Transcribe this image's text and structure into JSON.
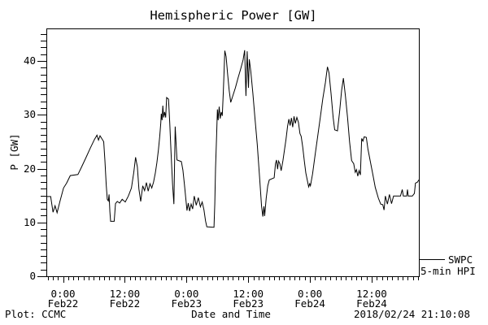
{
  "chart_data": {
    "type": "line",
    "title": "Hemispheric Power [GW]",
    "xlabel": "Date and Time",
    "ylabel": "P [GW]",
    "ylim": [
      0,
      46
    ],
    "grid": false,
    "line_color": "#000000",
    "background_color": "#ffffff",
    "y_major_ticks": [
      0,
      10,
      20,
      30,
      40
    ],
    "y_minor_step_gw": 1.25,
    "x_axis": {
      "unit": "hours since 2018-02-22 00:00",
      "range_hours": [
        -3.24,
        69.17
      ],
      "minor_step_hours": 1,
      "major_ticks": [
        {
          "hour": 0,
          "time": "0:00",
          "date": "Feb22"
        },
        {
          "hour": 12,
          "time": "12:00",
          "date": "Feb22"
        },
        {
          "hour": 24,
          "time": "0:00",
          "date": "Feb23"
        },
        {
          "hour": 36,
          "time": "12:00",
          "date": "Feb23"
        },
        {
          "hour": 48,
          "time": "0:00",
          "date": "Feb24"
        },
        {
          "hour": 60,
          "time": "12:00",
          "date": "Feb24"
        }
      ]
    },
    "legend": {
      "label_top": "SWPC",
      "label_bottom": "5-min HPI"
    },
    "footer": {
      "left": "Plot: CCMC",
      "right": "2018/02/24 21:10:08"
    },
    "series": [
      {
        "name": "SWPC 5-min HPI",
        "color": "#000000",
        "points_hours_gw": [
          [
            -3.24,
            14.8
          ],
          [
            -2.4,
            14.8
          ],
          [
            -2.15,
            13.2
          ],
          [
            -1.95,
            11.9
          ],
          [
            -1.55,
            13.1
          ],
          [
            -1.15,
            11.8
          ],
          [
            -0.6,
            13.9
          ],
          [
            0.1,
            16.4
          ],
          [
            0.7,
            17.3
          ],
          [
            1.4,
            18.7
          ],
          [
            2.9,
            18.9
          ],
          [
            3.6,
            20.3
          ],
          [
            4.4,
            21.9
          ],
          [
            5.3,
            23.8
          ],
          [
            6.1,
            25.4
          ],
          [
            6.6,
            26.2
          ],
          [
            6.9,
            25.3
          ],
          [
            7.2,
            26.1
          ],
          [
            7.9,
            25.0
          ],
          [
            8.15,
            21.5
          ],
          [
            8.4,
            17.0
          ],
          [
            8.6,
            14.3
          ],
          [
            8.8,
            14.0
          ],
          [
            8.95,
            15.2
          ],
          [
            9.1,
            12.0
          ],
          [
            9.25,
            10.2
          ],
          [
            9.95,
            10.2
          ],
          [
            10.2,
            13.5
          ],
          [
            10.55,
            13.9
          ],
          [
            11.0,
            13.6
          ],
          [
            11.5,
            14.3
          ],
          [
            12.1,
            13.8
          ],
          [
            12.7,
            14.9
          ],
          [
            13.3,
            16.4
          ],
          [
            13.75,
            19.3
          ],
          [
            14.1,
            22.1
          ],
          [
            14.45,
            20.3
          ],
          [
            14.75,
            16.2
          ],
          [
            15.1,
            13.9
          ],
          [
            15.5,
            16.8
          ],
          [
            15.85,
            15.9
          ],
          [
            16.2,
            17.4
          ],
          [
            16.55,
            15.8
          ],
          [
            16.9,
            17.2
          ],
          [
            17.25,
            16.4
          ],
          [
            17.6,
            17.5
          ],
          [
            17.95,
            19.2
          ],
          [
            18.25,
            21.1
          ],
          [
            18.55,
            23.5
          ],
          [
            18.8,
            26.0
          ],
          [
            19.0,
            28.5
          ],
          [
            19.1,
            30.2
          ],
          [
            19.25,
            29.0
          ],
          [
            19.4,
            31.7
          ],
          [
            19.55,
            29.5
          ],
          [
            19.75,
            30.5
          ],
          [
            19.95,
            29.5
          ],
          [
            20.15,
            33.2
          ],
          [
            20.5,
            32.9
          ],
          [
            20.75,
            28.5
          ],
          [
            21.0,
            23.0
          ],
          [
            21.3,
            17.0
          ],
          [
            21.55,
            13.4
          ],
          [
            21.8,
            27.8
          ],
          [
            22.15,
            21.6
          ],
          [
            23.0,
            21.3
          ],
          [
            23.3,
            19.7
          ],
          [
            23.6,
            17.0
          ],
          [
            23.85,
            14.5
          ],
          [
            24.1,
            12.2
          ],
          [
            24.35,
            13.6
          ],
          [
            24.6,
            12.1
          ],
          [
            24.9,
            13.4
          ],
          [
            25.2,
            12.5
          ],
          [
            25.5,
            14.9
          ],
          [
            25.9,
            13.2
          ],
          [
            26.3,
            14.6
          ],
          [
            26.7,
            12.9
          ],
          [
            27.05,
            13.8
          ],
          [
            27.4,
            12.3
          ],
          [
            27.7,
            10.3
          ],
          [
            27.95,
            9.2
          ],
          [
            29.35,
            9.1
          ],
          [
            29.5,
            13.5
          ],
          [
            29.65,
            20.0
          ],
          [
            29.85,
            26.0
          ],
          [
            30.0,
            31.0
          ],
          [
            30.15,
            29.0
          ],
          [
            30.35,
            31.5
          ],
          [
            30.55,
            29.3
          ],
          [
            30.75,
            30.5
          ],
          [
            30.95,
            29.8
          ],
          [
            31.15,
            34.0
          ],
          [
            31.3,
            38.0
          ],
          [
            31.45,
            41.9
          ],
          [
            31.7,
            40.8
          ],
          [
            32.0,
            37.5
          ],
          [
            32.3,
            34.5
          ],
          [
            32.6,
            32.3
          ],
          [
            33.0,
            33.5
          ],
          [
            33.5,
            35.0
          ],
          [
            34.0,
            36.8
          ],
          [
            34.5,
            38.4
          ],
          [
            35.0,
            40.2
          ],
          [
            35.3,
            42.0
          ],
          [
            35.55,
            33.5
          ],
          [
            35.8,
            41.8
          ],
          [
            36.05,
            35.0
          ],
          [
            36.2,
            40.3
          ],
          [
            36.5,
            38.0
          ],
          [
            36.9,
            34.0
          ],
          [
            37.3,
            29.5
          ],
          [
            37.75,
            24.5
          ],
          [
            38.2,
            18.5
          ],
          [
            38.6,
            13.0
          ],
          [
            38.85,
            11.1
          ],
          [
            39.05,
            13.0
          ],
          [
            39.2,
            11.2
          ],
          [
            39.5,
            14.5
          ],
          [
            39.8,
            16.8
          ],
          [
            40.1,
            17.9
          ],
          [
            41.05,
            18.3
          ],
          [
            41.3,
            20.9
          ],
          [
            41.5,
            21.6
          ],
          [
            41.7,
            19.9
          ],
          [
            41.9,
            21.4
          ],
          [
            42.15,
            20.9
          ],
          [
            42.4,
            19.6
          ],
          [
            42.75,
            21.5
          ],
          [
            43.05,
            23.5
          ],
          [
            43.35,
            25.5
          ],
          [
            43.65,
            27.9
          ],
          [
            43.9,
            29.2
          ],
          [
            44.15,
            28.0
          ],
          [
            44.4,
            29.4
          ],
          [
            44.65,
            27.7
          ],
          [
            44.9,
            29.7
          ],
          [
            45.15,
            28.4
          ],
          [
            45.45,
            29.5
          ],
          [
            45.75,
            28.6
          ],
          [
            46.05,
            26.5
          ],
          [
            46.3,
            26.0
          ],
          [
            46.6,
            24.0
          ],
          [
            46.9,
            21.5
          ],
          [
            47.2,
            19.2
          ],
          [
            47.5,
            17.8
          ],
          [
            47.75,
            16.6
          ],
          [
            47.95,
            17.2
          ],
          [
            48.1,
            16.8
          ],
          [
            48.5,
            19.0
          ],
          [
            49.0,
            22.5
          ],
          [
            49.5,
            26.0
          ],
          [
            50.0,
            29.5
          ],
          [
            50.5,
            33.0
          ],
          [
            51.0,
            36.0
          ],
          [
            51.4,
            38.9
          ],
          [
            51.7,
            37.8
          ],
          [
            52.1,
            34.0
          ],
          [
            52.5,
            29.5
          ],
          [
            52.8,
            27.2
          ],
          [
            53.35,
            27.0
          ],
          [
            53.75,
            30.5
          ],
          [
            54.15,
            34.5
          ],
          [
            54.5,
            36.8
          ],
          [
            54.9,
            33.5
          ],
          [
            55.3,
            29.5
          ],
          [
            55.7,
            25.0
          ],
          [
            56.1,
            21.5
          ],
          [
            56.5,
            20.9
          ],
          [
            56.8,
            19.3
          ],
          [
            57.05,
            19.8
          ],
          [
            57.3,
            18.6
          ],
          [
            57.55,
            19.6
          ],
          [
            57.8,
            18.8
          ],
          [
            58.05,
            25.6
          ],
          [
            58.3,
            25.1
          ],
          [
            58.55,
            25.9
          ],
          [
            58.95,
            25.8
          ],
          [
            59.25,
            23.7
          ],
          [
            59.7,
            21.5
          ],
          [
            60.2,
            19.0
          ],
          [
            60.7,
            16.5
          ],
          [
            61.3,
            14.5
          ],
          [
            61.75,
            13.4
          ],
          [
            62.15,
            13.3
          ],
          [
            62.4,
            12.3
          ],
          [
            62.65,
            14.9
          ],
          [
            63.05,
            13.4
          ],
          [
            63.45,
            15.2
          ],
          [
            63.85,
            13.5
          ],
          [
            64.25,
            14.9
          ],
          [
            65.6,
            14.9
          ],
          [
            65.95,
            16.1
          ],
          [
            66.15,
            14.9
          ],
          [
            66.8,
            14.9
          ],
          [
            66.95,
            16.1
          ],
          [
            67.1,
            14.9
          ],
          [
            67.9,
            14.9
          ],
          [
            68.3,
            15.4
          ],
          [
            68.5,
            17.3
          ],
          [
            68.9,
            17.5
          ],
          [
            69.17,
            17.9
          ]
        ]
      }
    ]
  }
}
